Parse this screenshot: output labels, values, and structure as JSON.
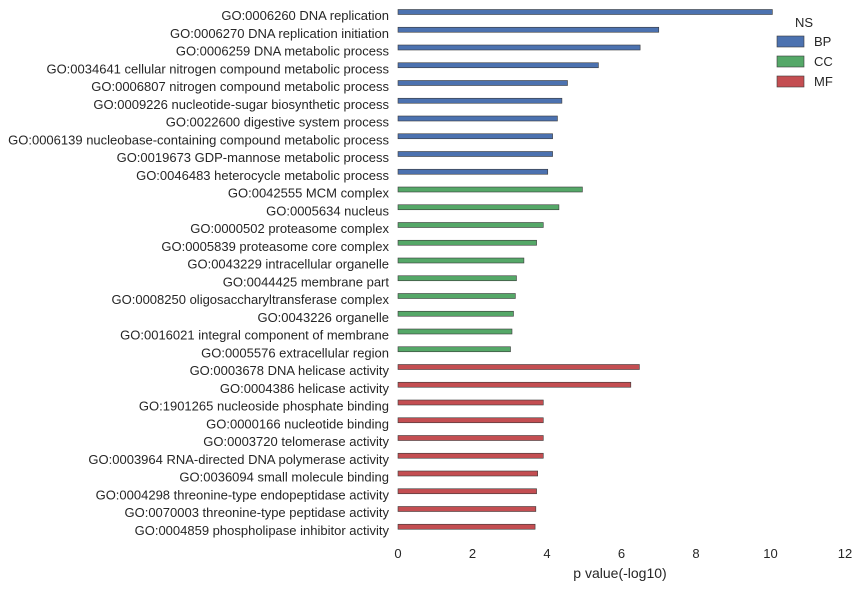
{
  "chart_data": {
    "type": "bar",
    "orientation": "horizontal",
    "xlabel": "p value(-log10)",
    "ylabel": "",
    "xlim": [
      0,
      12
    ],
    "xticks": [
      0,
      2,
      4,
      6,
      8,
      10,
      12
    ],
    "grid": false,
    "legend": {
      "title": "NS",
      "placement": "top-right",
      "entries": [
        {
          "name": "BP",
          "color": "#4c72b0"
        },
        {
          "name": "CC",
          "color": "#55a868"
        },
        {
          "name": "MF",
          "color": "#c44e52"
        }
      ]
    },
    "categories": [
      "GO:0006260 DNA replication",
      "GO:0006270 DNA replication initiation",
      "GO:0006259 DNA metabolic process",
      "GO:0034641 cellular nitrogen compound metabolic process",
      "GO:0006807 nitrogen compound metabolic process",
      "GO:0009226 nucleotide-sugar biosynthetic process",
      "GO:0022600 digestive system process",
      "GO:0006139 nucleobase-containing compound metabolic process",
      "GO:0019673 GDP-mannose metabolic process",
      "GO:0046483 heterocycle metabolic process",
      "GO:0042555 MCM complex",
      "GO:0005634 nucleus",
      "GO:0000502 proteasome complex",
      "GO:0005839 proteasome core complex",
      "GO:0043229 intracellular organelle",
      "GO:0044425 membrane part",
      "GO:0008250 oligosaccharyltransferase complex",
      "GO:0043226 organelle",
      "GO:0016021 integral component of membrane",
      "GO:0005576 extracellular region",
      "GO:0003678 DNA helicase activity",
      "GO:0004386 helicase activity",
      "GO:1901265 nucleoside phosphate binding",
      "GO:0000166 nucleotide binding",
      "GO:0003720 telomerase activity",
      "GO:0003964 RNA-directed DNA polymerase activity",
      "GO:0036094 small molecule binding",
      "GO:0004298 threonine-type endopeptidase activity",
      "GO:0070003 threonine-type peptidase activity",
      "GO:0004859 phospholipase inhibitor activity"
    ],
    "series": [
      {
        "name": "BP",
        "color": "#4c72b0",
        "values": [
          10.05,
          7.0,
          6.5,
          5.38,
          4.55,
          4.4,
          4.28,
          4.15,
          4.15,
          4.02,
          null,
          null,
          null,
          null,
          null,
          null,
          null,
          null,
          null,
          null,
          null,
          null,
          null,
          null,
          null,
          null,
          null,
          null,
          null,
          null
        ]
      },
      {
        "name": "CC",
        "color": "#55a868",
        "values": [
          null,
          null,
          null,
          null,
          null,
          null,
          null,
          null,
          null,
          null,
          4.95,
          4.32,
          3.9,
          3.72,
          3.38,
          3.18,
          3.15,
          3.1,
          3.06,
          3.02,
          null,
          null,
          null,
          null,
          null,
          null,
          null,
          null,
          null,
          null
        ]
      },
      {
        "name": "MF",
        "color": "#c44e52",
        "values": [
          null,
          null,
          null,
          null,
          null,
          null,
          null,
          null,
          null,
          null,
          null,
          null,
          null,
          null,
          null,
          null,
          null,
          null,
          null,
          null,
          6.48,
          6.25,
          3.9,
          3.9,
          3.9,
          3.9,
          3.75,
          3.72,
          3.7,
          3.68
        ]
      }
    ]
  }
}
